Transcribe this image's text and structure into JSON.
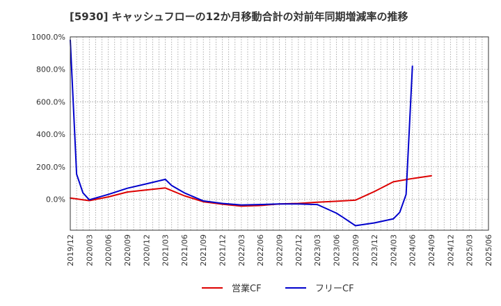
{
  "chart_data": {
    "type": "line",
    "title": "[5930]  キャッシュフローの12か月移動合計の対前年同期増減率の推移",
    "xlabel": "",
    "ylabel": "",
    "ylim": [
      -190,
      1000
    ],
    "yticks": [
      0,
      200,
      400,
      600,
      800,
      1000
    ],
    "ytick_labels": [
      "0.0%",
      "200.0%",
      "400.0%",
      "600.0%",
      "800.0%",
      "1000.0%"
    ],
    "x_range": [
      0,
      66
    ],
    "xticks": [
      0,
      3,
      6,
      9,
      12,
      15,
      18,
      21,
      24,
      27,
      30,
      33,
      36,
      39,
      42,
      45,
      48,
      51,
      54,
      57,
      60,
      63,
      66
    ],
    "xtick_labels": [
      "2019/12",
      "2020/03",
      "2020/06",
      "2020/09",
      "2020/12",
      "2021/03",
      "2021/06",
      "2021/09",
      "2021/12",
      "2022/03",
      "2022/06",
      "2022/09",
      "2022/12",
      "2023/03",
      "2023/06",
      "2023/09",
      "2023/12",
      "2024/03",
      "2024/06",
      "2024/09",
      "2024/12",
      "2025/03",
      "2025/06"
    ],
    "grid": true,
    "legend_position": "bottom",
    "series": [
      {
        "name": "営業CF",
        "color": "#dd0000",
        "points": [
          [
            0,
            8
          ],
          [
            3,
            -8
          ],
          [
            6,
            15
          ],
          [
            9,
            45
          ],
          [
            12,
            58
          ],
          [
            15,
            70
          ],
          [
            18,
            22
          ],
          [
            21,
            -15
          ],
          [
            24,
            -30
          ],
          [
            27,
            -42
          ],
          [
            30,
            -38
          ],
          [
            33,
            -28
          ],
          [
            36,
            -25
          ],
          [
            39,
            -18
          ],
          [
            42,
            -12
          ],
          [
            45,
            -5
          ],
          [
            48,
            48
          ],
          [
            51,
            108
          ],
          [
            54,
            128
          ],
          [
            57,
            145
          ]
        ]
      },
      {
        "name": "フリーCF",
        "color": "#0000cc",
        "points": [
          [
            0,
            980
          ],
          [
            1,
            155
          ],
          [
            2,
            40
          ],
          [
            3,
            -3
          ],
          [
            6,
            30
          ],
          [
            9,
            68
          ],
          [
            12,
            95
          ],
          [
            15,
            123
          ],
          [
            16,
            85
          ],
          [
            18,
            40
          ],
          [
            21,
            -10
          ],
          [
            24,
            -25
          ],
          [
            27,
            -35
          ],
          [
            30,
            -32
          ],
          [
            33,
            -28
          ],
          [
            36,
            -28
          ],
          [
            39,
            -32
          ],
          [
            42,
            -85
          ],
          [
            43,
            -110
          ],
          [
            45,
            -162
          ],
          [
            48,
            -145
          ],
          [
            51,
            -120
          ],
          [
            52,
            -80
          ],
          [
            53,
            30
          ],
          [
            54,
            820
          ]
        ]
      }
    ]
  }
}
